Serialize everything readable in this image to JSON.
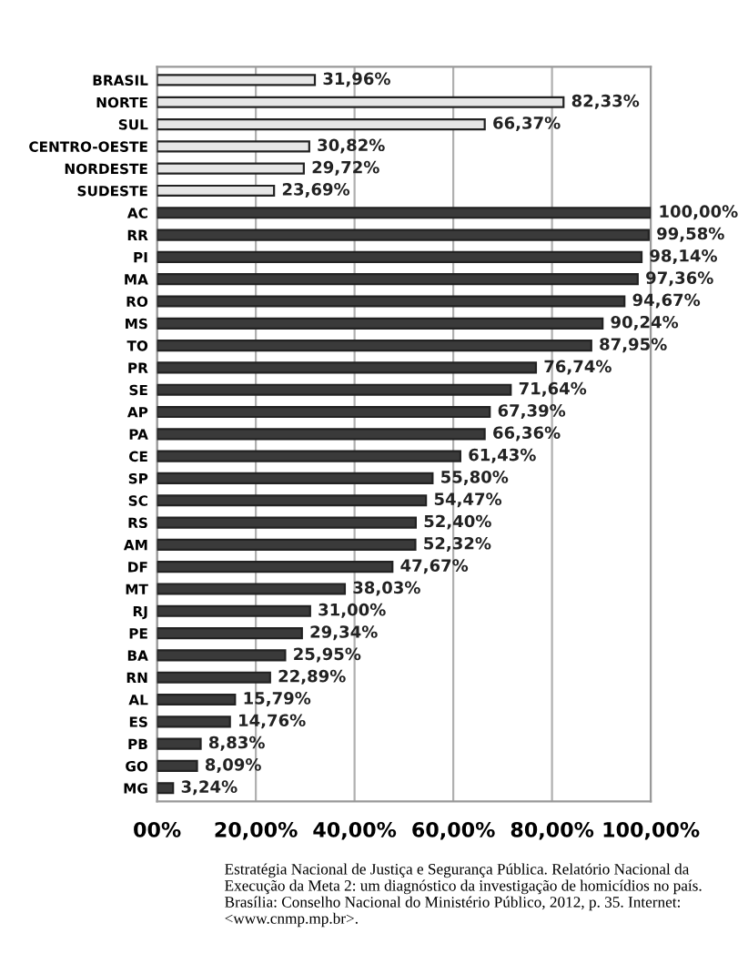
{
  "chart_data": {
    "type": "bar",
    "orientation": "horizontal",
    "categories": [
      "BRASIL",
      "NORTE",
      "SUL",
      "CENTRO-OESTE",
      "NORDESTE",
      "SUDESTE",
      "AC",
      "RR",
      "PI",
      "MA",
      "RO",
      "MS",
      "TO",
      "PR",
      "SE",
      "AP",
      "PA",
      "CE",
      "SP",
      "SC",
      "RS",
      "AM",
      "DF",
      "MT",
      "RJ",
      "PE",
      "BA",
      "RN",
      "AL",
      "ES",
      "PB",
      "GO",
      "MG"
    ],
    "values": [
      31.96,
      82.33,
      66.37,
      30.82,
      29.72,
      23.69,
      100.0,
      99.58,
      98.14,
      97.36,
      94.67,
      90.24,
      87.95,
      76.74,
      71.64,
      67.39,
      66.36,
      61.43,
      55.8,
      54.47,
      52.4,
      52.32,
      47.67,
      38.03,
      31.0,
      29.34,
      25.95,
      22.89,
      15.79,
      14.76,
      8.83,
      8.09,
      3.24
    ],
    "value_labels": [
      "31,96%",
      "82,33%",
      "66,37%",
      "30,82%",
      "29,72%",
      "23,69%",
      "100,00%",
      "99,58%",
      "98,14%",
      "97,36%",
      "94,67%",
      "90,24%",
      "87,95%",
      "76,74%",
      "71,64%",
      "67,39%",
      "66,36%",
      "61,43%",
      "55,80%",
      "54,47%",
      "52,40%",
      "52,32%",
      "47,67%",
      "38,03%",
      "31,00%",
      "29,34%",
      "25,95%",
      "22,89%",
      "15,79%",
      "14,76%",
      "8,83%",
      "8,09%",
      "3,24%"
    ],
    "colors": [
      "#e6e6e6",
      "#e6e6e6",
      "#e6e6e6",
      "#e6e6e6",
      "#e6e6e6",
      "#e6e6e6",
      "#3a3a3a",
      "#3a3a3a",
      "#3a3a3a",
      "#3a3a3a",
      "#3a3a3a",
      "#3a3a3a",
      "#3a3a3a",
      "#3a3a3a",
      "#3a3a3a",
      "#3a3a3a",
      "#3a3a3a",
      "#3a3a3a",
      "#3a3a3a",
      "#3a3a3a",
      "#3a3a3a",
      "#3a3a3a",
      "#3a3a3a",
      "#3a3a3a",
      "#3a3a3a",
      "#3a3a3a",
      "#3a3a3a",
      "#3a3a3a",
      "#3a3a3a",
      "#3a3a3a",
      "#3a3a3a",
      "#3a3a3a",
      "#3a3a3a"
    ],
    "xlim": [
      0,
      100
    ],
    "xticks": [
      {
        "value": 0,
        "label": "00%"
      },
      {
        "value": 20,
        "label": "20,00%"
      },
      {
        "value": 40,
        "label": "40,00%"
      },
      {
        "value": 60,
        "label": "60,00%"
      },
      {
        "value": 80,
        "label": "80,00%"
      },
      {
        "value": 100,
        "label": "100,00%"
      }
    ],
    "grid": "x",
    "annotations": [
      "Estratégia Nacional de Justiça e Segurança Pública. Relatório Nacional da Execução da Meta 2: um diagnóstico da investigação de homicídios no país. Brasília: Conselho Nacional do Ministério Público, 2012, p. 35. Internet: <www.cnmp.mp.br>."
    ]
  }
}
